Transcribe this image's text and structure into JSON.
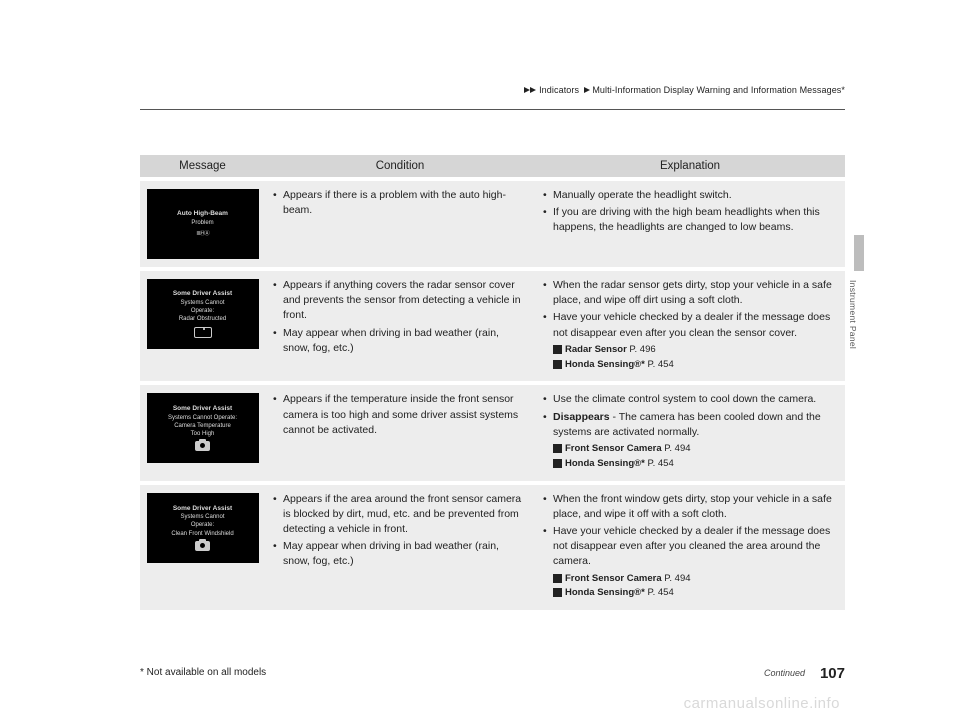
{
  "breadcrumb": {
    "part1": "Indicators",
    "part2": "Multi-Information Display Warning and Information Messages*"
  },
  "sideTab": "Instrument Panel",
  "footnote": "* Not available on all models",
  "continued": "Continued",
  "pageNumber": "107",
  "watermark": "carmanualsonline.info",
  "headers": {
    "c1": "Message",
    "c2": "Condition",
    "c3": "Explanation"
  },
  "rows": [
    {
      "screen": {
        "l1": "Auto High-Beam",
        "l2": "Problem",
        "iconText": "≣ⒽⒶ"
      },
      "condition": [
        "Appears if there is a problem with the auto high-beam."
      ],
      "explanation": {
        "bullets": [
          "Manually operate the headlight switch.",
          "If you are driving with the high beam headlights when this happens, the headlights are changed to low beams."
        ],
        "refs": []
      }
    },
    {
      "screen": {
        "l1": "Some Driver Assist",
        "l2": "Systems Cannot",
        "l3": "Operate:",
        "l4": "Radar Obstructed",
        "iconType": "radar"
      },
      "condition": [
        "Appears if anything covers the radar sensor cover and prevents the sensor from detecting a vehicle in front.",
        "May appear when driving in bad weather (rain, snow, fog, etc.)"
      ],
      "explanation": {
        "bullets": [
          "When the radar sensor gets dirty, stop your vehicle in a safe place, and wipe off dirt using a soft cloth.",
          "Have your vehicle checked by a dealer if the message does not disappear even after you clean the sensor cover."
        ],
        "refs": [
          {
            "b": "Radar Sensor",
            "p": " P. 496"
          },
          {
            "b": "Honda Sensing®*",
            "p": " P. 454"
          }
        ]
      }
    },
    {
      "screen": {
        "l1": "Some Driver Assist",
        "l2": "Systems Cannot Operate:",
        "l3": "Camera Temperature",
        "l4": "Too High",
        "iconType": "cam"
      },
      "condition": [
        "Appears if the temperature inside the front sensor camera is too high and some driver assist systems cannot be activated."
      ],
      "explanation": {
        "bullets": [
          "Use the climate control system to cool down the camera."
        ],
        "boldBullet": {
          "b": "Disappears",
          "t": " - The camera has been cooled down and the systems are activated normally."
        },
        "refs": [
          {
            "b": "Front Sensor Camera",
            "p": " P. 494"
          },
          {
            "b": "Honda Sensing®*",
            "p": " P. 454"
          }
        ]
      }
    },
    {
      "screen": {
        "l1": "Some Driver Assist",
        "l2": "Systems Cannot",
        "l3": "Operate:",
        "l4": "Clean Front Windshield",
        "iconType": "cam"
      },
      "condition": [
        "Appears if the area around the front sensor camera is blocked by dirt, mud, etc. and be prevented from detecting a vehicle in front.",
        "May appear when driving in bad weather (rain, snow, fog, etc.)"
      ],
      "explanation": {
        "bullets": [
          "When the front window gets dirty, stop your vehicle in a safe place, and wipe it off with a soft cloth.",
          "Have your vehicle checked by a dealer if the message does not disappear even after you cleaned the area around the camera."
        ],
        "refs": [
          {
            "b": "Front Sensor Camera",
            "p": " P. 494"
          },
          {
            "b": "Honda Sensing®*",
            "p": " P. 454"
          }
        ]
      }
    }
  ]
}
